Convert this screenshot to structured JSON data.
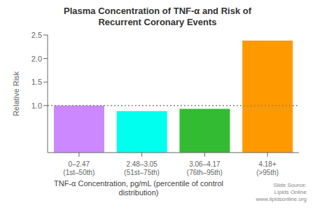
{
  "chart_data": {
    "type": "bar",
    "title": "Plasma Concentration of TNF-α and Risk of\nRecurrent Coronary Events",
    "categories": [
      "0–2.47\n(1st–50th)",
      "2.48–3.05\n(51st–75th)",
      "3.06–4.17\n(76th–95th)",
      "4.18+\n(>95th)"
    ],
    "values": [
      1.0,
      0.88,
      0.93,
      2.38
    ],
    "colors": [
      "#cc88ff",
      "#00ffee",
      "#33bb33",
      "#ff9900"
    ],
    "ylabel": "Relative Risk",
    "xlabel": "TNF-α Concentration, pg/mL (percentile of control\ndistribution)",
    "ylim": [
      0.0,
      2.5
    ],
    "yticks": [
      {
        "value": 1,
        "label": "1.0"
      },
      1.5,
      {
        "value": 2,
        "label": "2.0"
      },
      2.5
    ],
    "reference_line": 1.0,
    "annotation": "Slide Source:\nLipids Online\nwww.lipidsonline.org",
    "grid": false
  }
}
